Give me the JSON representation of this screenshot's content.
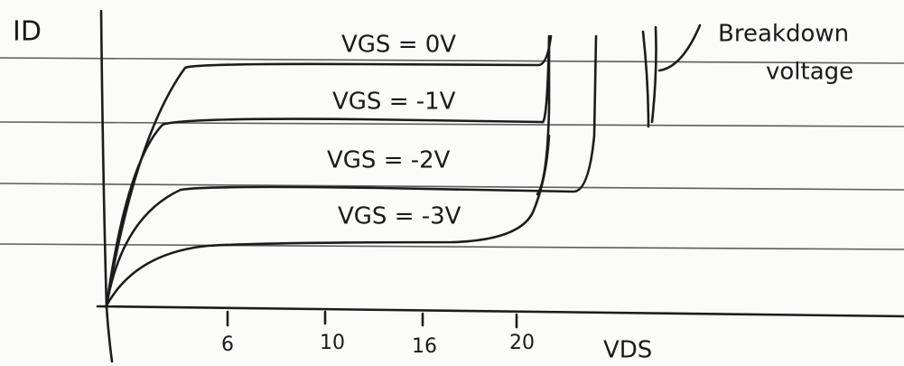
{
  "y_axis_label": "ID",
  "x_axis_label": "VDS",
  "x_tick_labels": [
    "6",
    "10",
    "16",
    "20"
  ],
  "curve_labels": [
    "VGS = 0V",
    "VGS = -1V",
    "VGS = -2V",
    "VGS = -3V"
  ],
  "annotation": [
    "Breakdown",
    "voltage"
  ]
}
